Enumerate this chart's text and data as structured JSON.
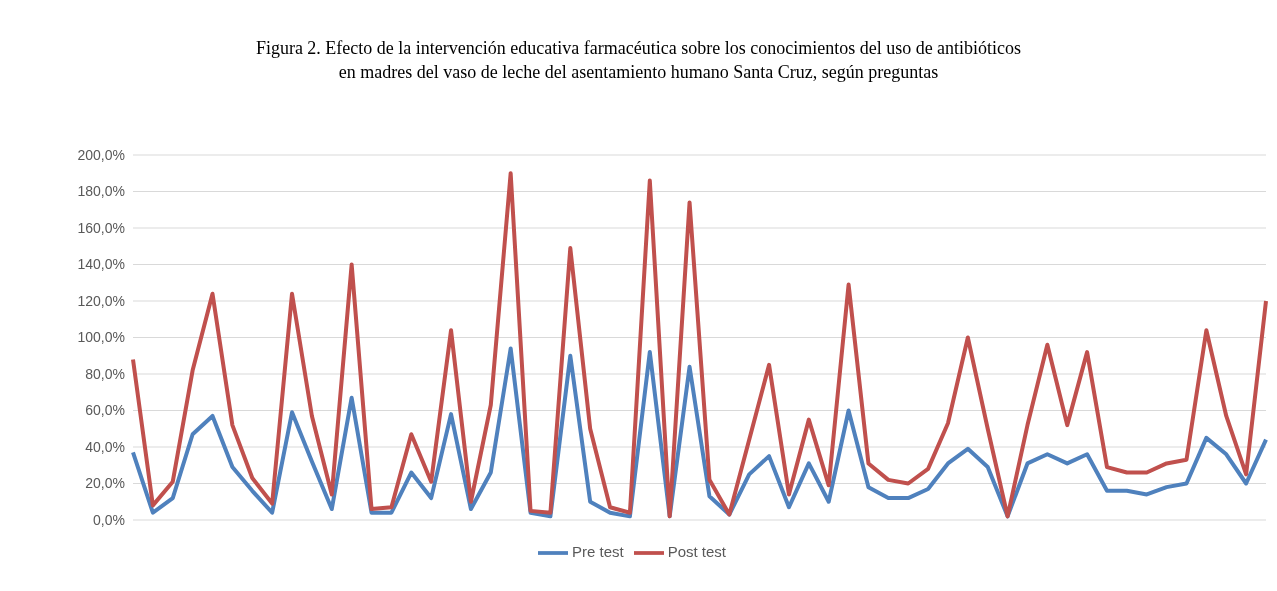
{
  "chart_data": {
    "type": "line",
    "title": "Figura 2. Efecto de la intervención educativa farmacéutica sobre los conocimientos del uso de antibióticos\nen madres del vaso de leche del asentamiento humano Santa Cruz, según preguntas",
    "categories": [
      null,
      null,
      null,
      null,
      null,
      null,
      null,
      null,
      null,
      null,
      null,
      null,
      null,
      null,
      null,
      null,
      null,
      null,
      null,
      null,
      null,
      null,
      null,
      null,
      null,
      null,
      null,
      null,
      null,
      null,
      null,
      null,
      null,
      null,
      null,
      null,
      null,
      null,
      null,
      null,
      null,
      null,
      null,
      null,
      null,
      null,
      null,
      null,
      null,
      null,
      null,
      null,
      null,
      null,
      null,
      null,
      null,
      null
    ],
    "series": [
      {
        "name": "Pre test",
        "color": "#4f81bd",
        "values": [
          37,
          4,
          12,
          47,
          57,
          29,
          16,
          4,
          59,
          32,
          6,
          67,
          4,
          4,
          26,
          12,
          58,
          6,
          26,
          94,
          4,
          2,
          90,
          10,
          4,
          2,
          92,
          2,
          84,
          13,
          3,
          25,
          35,
          7,
          31,
          10,
          60,
          18,
          12,
          12,
          17,
          31,
          39,
          29,
          2,
          31,
          36,
          31,
          36,
          16,
          16,
          14,
          18,
          20,
          45,
          36,
          20,
          44
        ]
      },
      {
        "name": "Post test",
        "color": "#c0504d",
        "values": [
          88,
          8,
          21,
          82,
          124,
          52,
          23,
          9,
          124,
          57,
          14,
          140,
          6,
          7,
          47,
          21,
          104,
          10,
          63,
          190,
          5,
          4,
          149,
          50,
          7,
          4,
          186,
          2,
          174,
          22,
          3,
          44,
          85,
          14,
          55,
          19,
          129,
          31,
          22,
          20,
          28,
          53,
          100,
          50,
          2,
          52,
          96,
          52,
          92,
          29,
          26,
          26,
          31,
          33,
          104,
          57,
          25,
          120
        ]
      }
    ],
    "ylim": [
      0,
      200
    ],
    "yticks": [
      {
        "value": 0,
        "label": "0,0%"
      },
      {
        "value": 20,
        "label": "20,0%"
      },
      {
        "value": 40,
        "label": "40,0%"
      },
      {
        "value": 60,
        "label": "60,0%"
      },
      {
        "value": 80,
        "label": "80,0%"
      },
      {
        "value": 100,
        "label": "100,0%"
      },
      {
        "value": 120,
        "label": "120,0%"
      },
      {
        "value": 140,
        "label": "140,0%"
      },
      {
        "value": 160,
        "label": "160,0%"
      },
      {
        "value": 180,
        "label": "180,0%"
      },
      {
        "value": 200,
        "label": "200,0%"
      }
    ],
    "grid": "y",
    "legend": "bottom",
    "tick_labels": "y",
    "marker": "none",
    "line_style": "solid"
  }
}
